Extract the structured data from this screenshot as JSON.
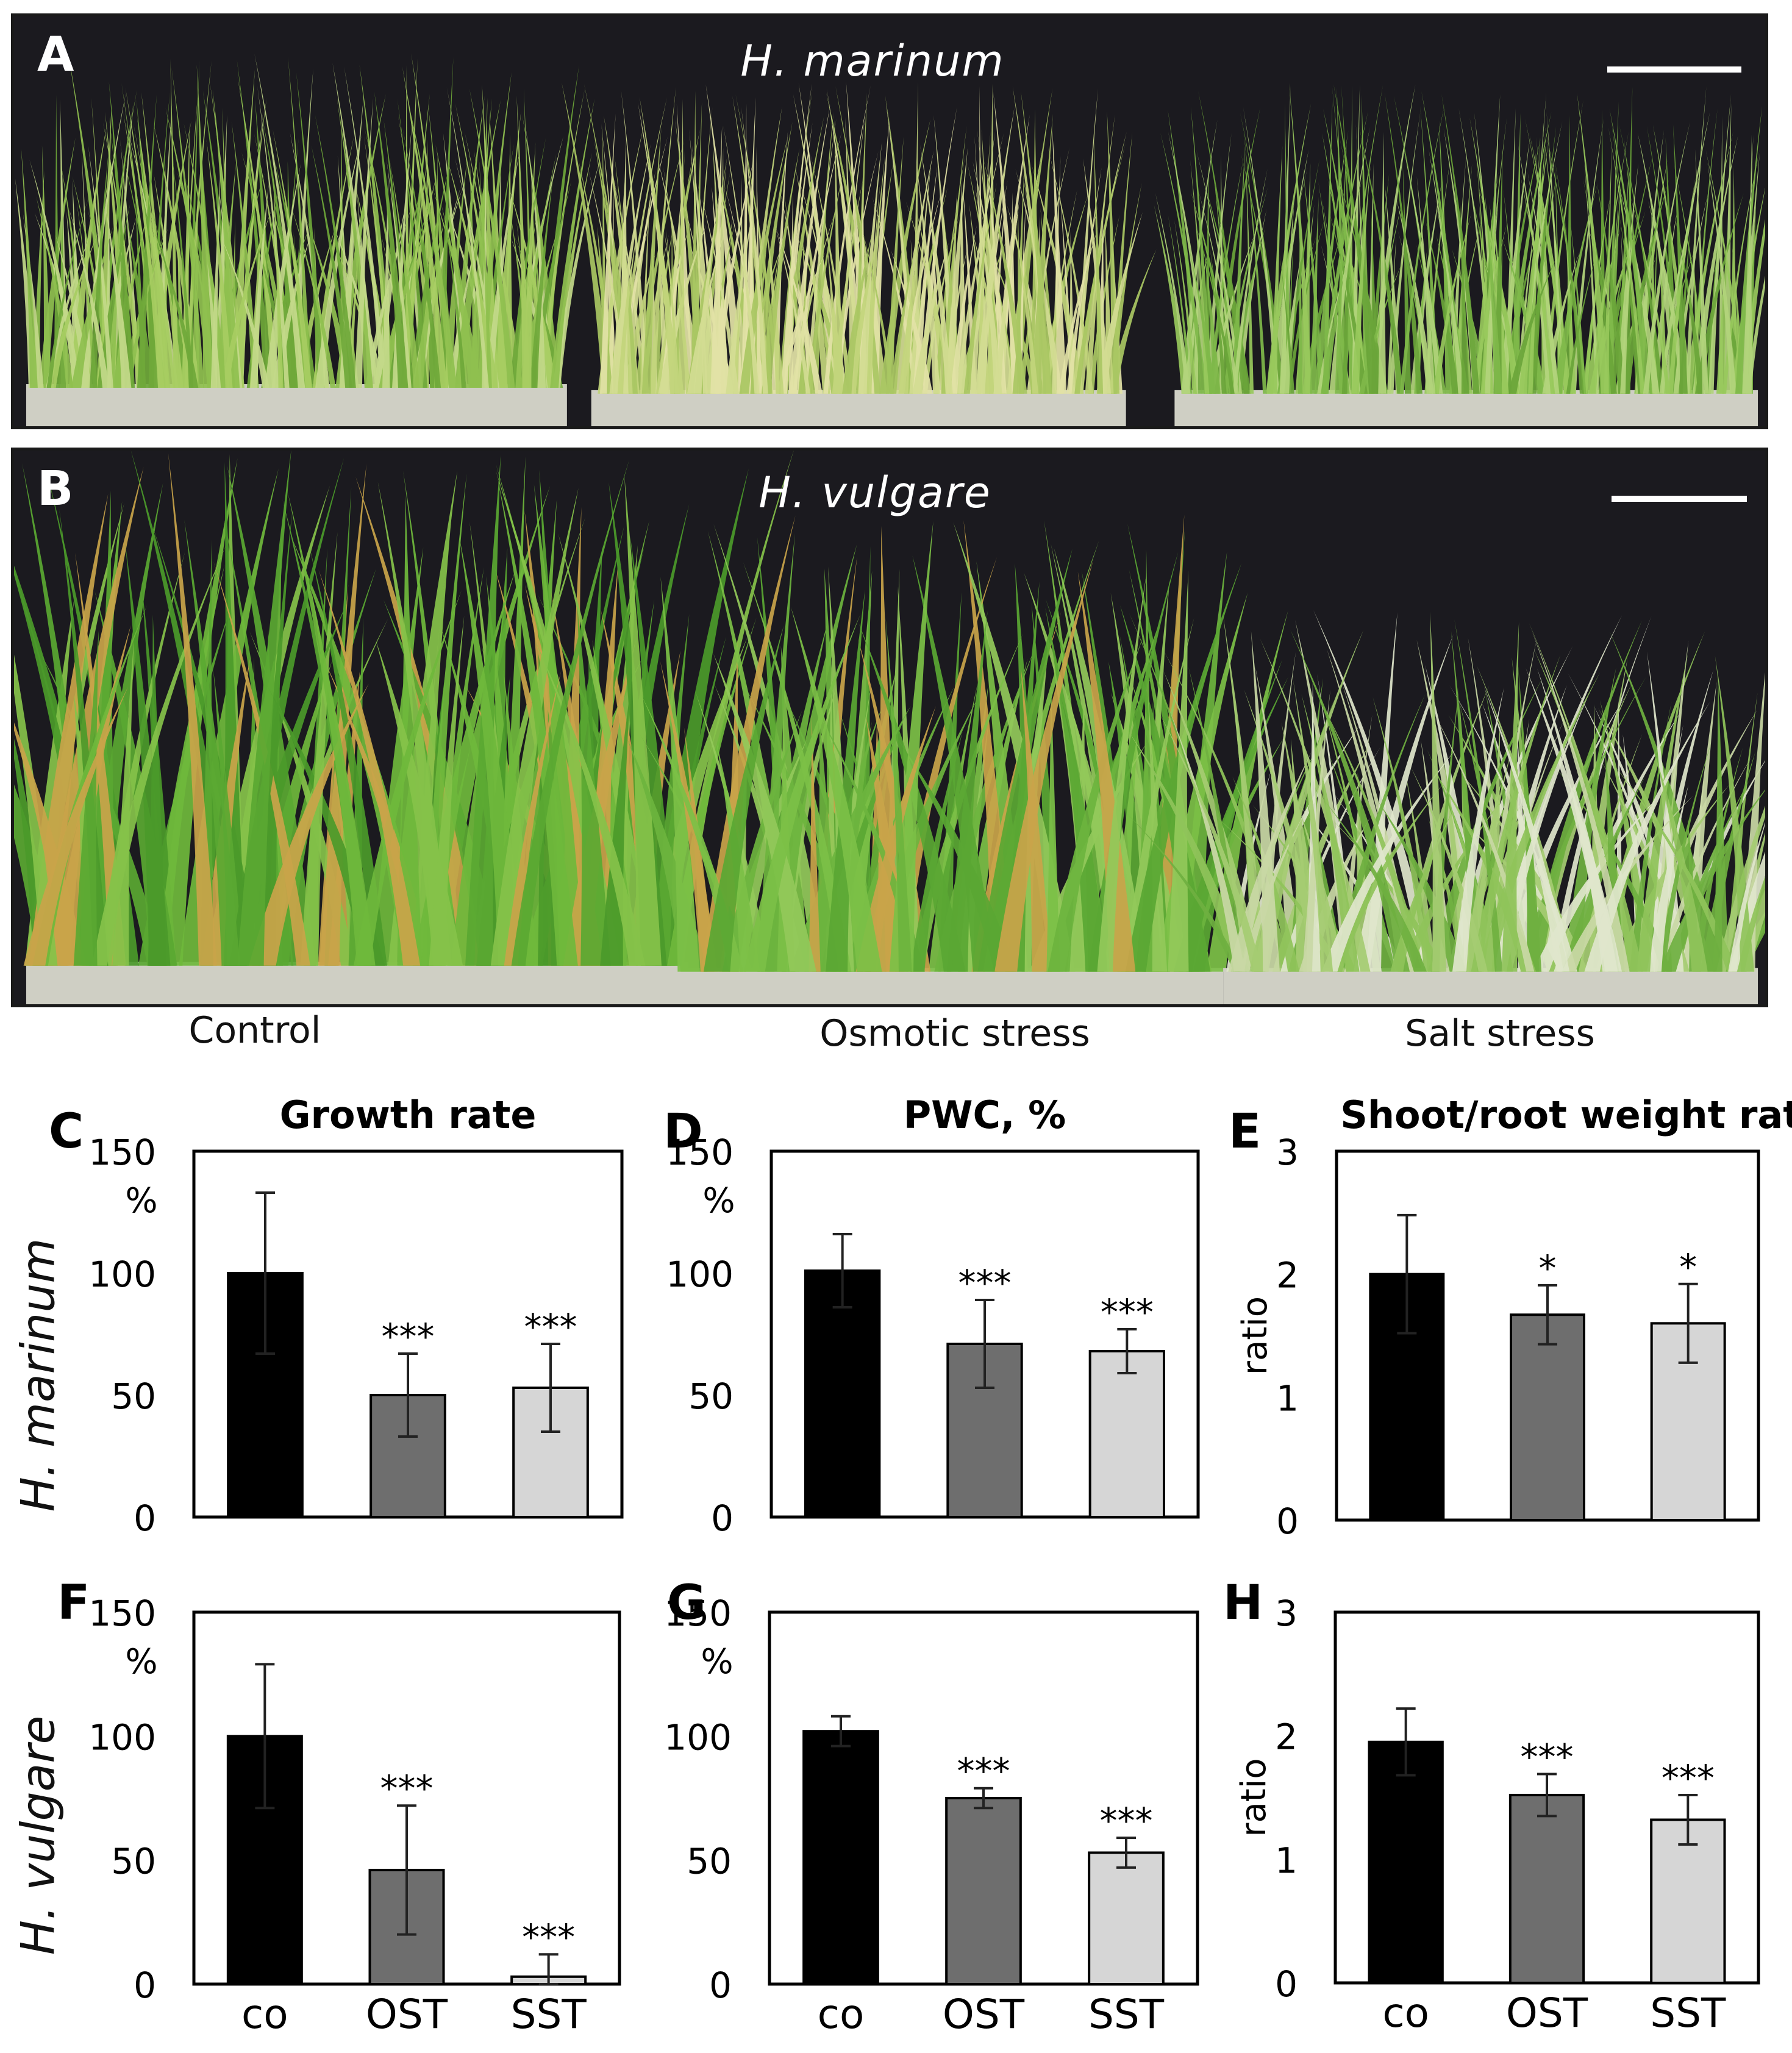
{
  "photos": [
    {
      "label": "A",
      "species": "H. marinum"
    },
    {
      "label": "B",
      "species": "H. vulgare"
    }
  ],
  "conditions": [
    "Control",
    "Osmotic stress",
    "Salt stress"
  ],
  "row_labels": [
    "H. marinum",
    "H. vulgare"
  ],
  "colors": {
    "co": "#000000",
    "OST": "#6e6e6e",
    "SST": "#d6d6d6",
    "photo_bg": "#1b1a1f",
    "grass_light": "#b8d36a",
    "grass_dark": "#4f9a2c"
  },
  "chart_data": [
    {
      "panel": "C",
      "type": "bar",
      "title": "Growth rate",
      "ylabel": "%",
      "ylim": [
        0,
        150
      ],
      "yticks": [
        "0",
        "50",
        "100",
        "150"
      ],
      "categories": [
        "co",
        "OST",
        "SST"
      ],
      "show_categories": false,
      "values": [
        100,
        50,
        53
      ],
      "errors": [
        33,
        17,
        18
      ],
      "significance": [
        "",
        "***",
        "***"
      ]
    },
    {
      "panel": "D",
      "type": "bar",
      "title": "PWC, %",
      "ylabel": "%",
      "ylim": [
        0,
        150
      ],
      "yticks": [
        "0",
        "50",
        "100",
        "150"
      ],
      "categories": [
        "co",
        "OST",
        "SST"
      ],
      "show_categories": false,
      "values": [
        101,
        71,
        68
      ],
      "errors": [
        15,
        18,
        9
      ],
      "significance": [
        "",
        "***",
        "***"
      ]
    },
    {
      "panel": "E",
      "type": "bar",
      "title": "Shoot/root weight ratio",
      "ylabel": "ratio",
      "ylim": [
        0,
        3
      ],
      "yticks": [
        "0",
        "1",
        "2",
        "3"
      ],
      "categories": [
        "co",
        "OST",
        "SST"
      ],
      "show_categories": false,
      "values": [
        2.0,
        1.67,
        1.6
      ],
      "errors": [
        0.48,
        0.24,
        0.32
      ],
      "significance": [
        "",
        "*",
        "*"
      ]
    },
    {
      "panel": "F",
      "type": "bar",
      "title": "",
      "ylabel": "%",
      "ylim": [
        0,
        150
      ],
      "yticks": [
        "0",
        "50",
        "100",
        "150"
      ],
      "categories": [
        "co",
        "OST",
        "SST"
      ],
      "show_categories": true,
      "values": [
        100,
        46,
        3
      ],
      "errors": [
        29,
        26,
        9
      ],
      "significance": [
        "",
        "***",
        "***"
      ]
    },
    {
      "panel": "G",
      "type": "bar",
      "title": "",
      "ylabel": "%",
      "ylim": [
        0,
        150
      ],
      "yticks": [
        "0",
        "50",
        "100",
        "150"
      ],
      "categories": [
        "co",
        "OST",
        "SST"
      ],
      "show_categories": true,
      "values": [
        102,
        75,
        53
      ],
      "errors": [
        6,
        4,
        6
      ],
      "significance": [
        "",
        "***",
        "***"
      ]
    },
    {
      "panel": "H",
      "type": "bar",
      "title": "",
      "ylabel": "ratio",
      "ylim": [
        0,
        3
      ],
      "yticks": [
        "0",
        "1",
        "2",
        "3"
      ],
      "categories": [
        "co",
        "OST",
        "SST"
      ],
      "show_categories": true,
      "values": [
        1.95,
        1.52,
        1.32
      ],
      "errors": [
        0.27,
        0.17,
        0.2
      ],
      "significance": [
        "",
        "***",
        "***"
      ]
    }
  ]
}
